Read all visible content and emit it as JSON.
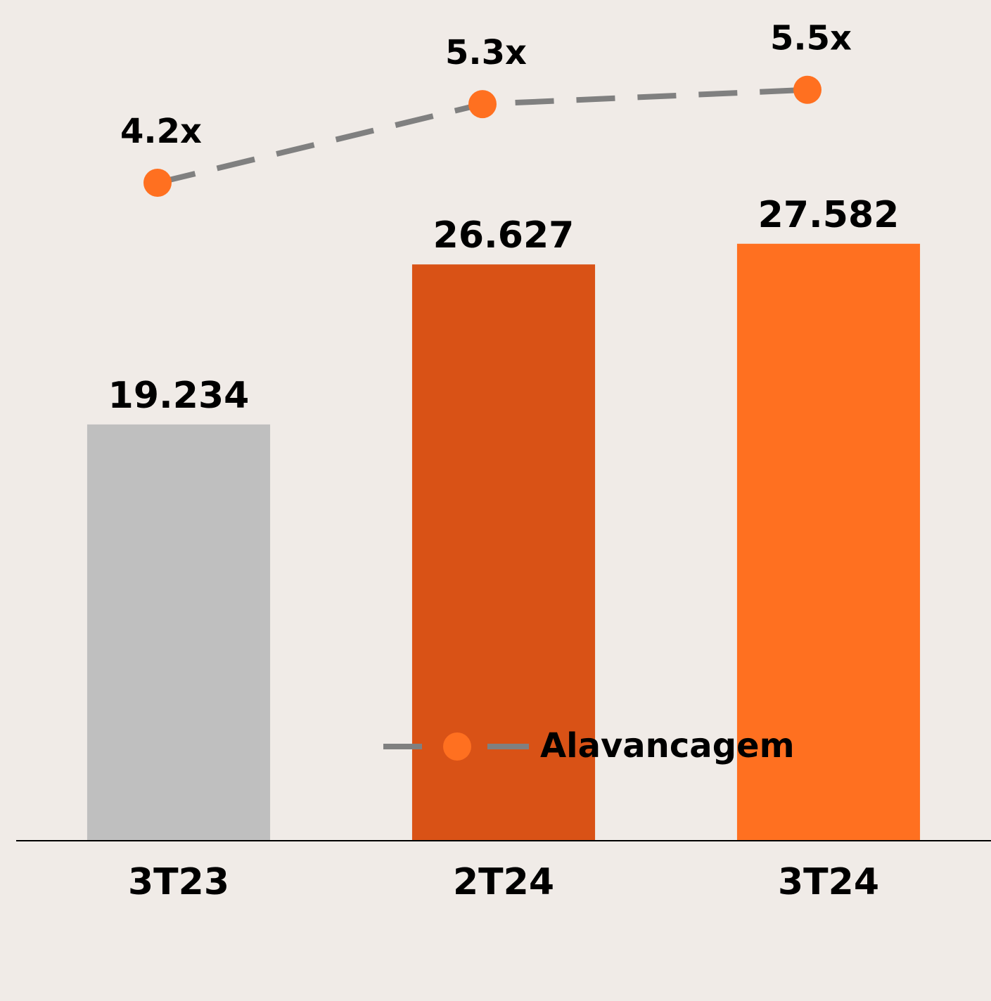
{
  "chart_data": {
    "type": "bar",
    "categories": [
      "3T23",
      "2T24",
      "3T24"
    ],
    "values": [
      19234,
      26627,
      27582
    ],
    "value_labels": [
      "19.234",
      "26.627",
      "27.582"
    ],
    "colors": [
      "#bfbfbf",
      "#d95216",
      "#ff7020"
    ],
    "ylim": [
      0,
      38000
    ],
    "series": [
      {
        "name": "Alavancagem",
        "type": "line",
        "axis": "y2",
        "color": "#808080",
        "marker_color": "#ff7020",
        "values": [
          4.2,
          5.3,
          5.5
        ],
        "value_labels": [
          "4.2x",
          "5.3x",
          "5.5x"
        ]
      }
    ],
    "y2lim": [
      -5,
      6.5
    ],
    "legend": "bottom"
  }
}
